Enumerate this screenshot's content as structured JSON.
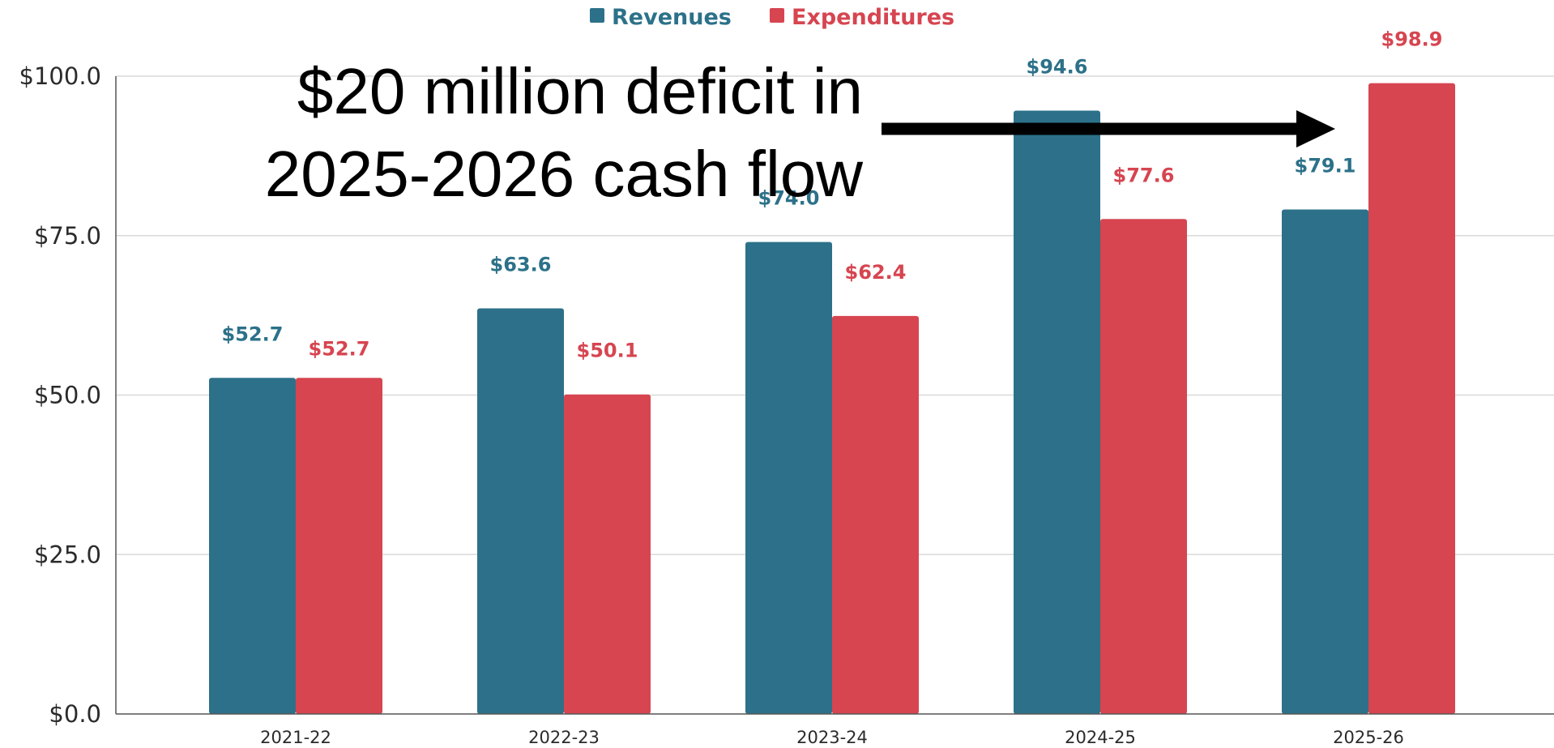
{
  "chart_data": {
    "type": "bar",
    "categories": [
      "2021-22",
      "2022-23",
      "2023-24",
      "2024-25",
      "2025-26"
    ],
    "series": [
      {
        "name": "Revenues",
        "color": "#2c7189",
        "values": [
          52.7,
          63.6,
          74.0,
          94.6,
          79.1
        ],
        "labels": [
          "$52.7",
          "$63.6",
          "$74.0",
          "$94.6",
          "$79.1"
        ]
      },
      {
        "name": "Expenditures",
        "color": "#d64550",
        "values": [
          52.7,
          50.1,
          62.4,
          77.6,
          98.9
        ],
        "labels": [
          "$52.7",
          "$50.1",
          "$62.4",
          "$77.6",
          "$98.9"
        ]
      }
    ],
    "ylim": [
      0,
      100
    ],
    "yticks": [
      "$0.0",
      "$25.0",
      "$50.0",
      "$75.0",
      "$100.0"
    ],
    "grid": true,
    "legend_position": "top-center",
    "annotation": {
      "lines": [
        "$20 million deficit in",
        "2025-2026 cash flow"
      ],
      "arrow_target": "2025-26 Expenditures"
    }
  }
}
